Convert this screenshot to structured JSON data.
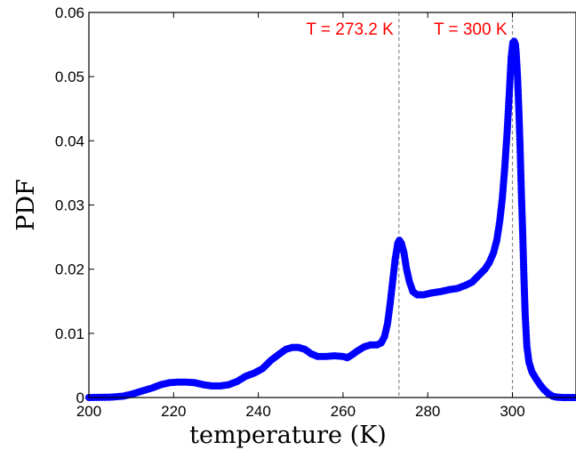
{
  "chart_data": {
    "type": "scatter",
    "xlabel": "temperature (K)",
    "ylabel": "PDF",
    "xlim": [
      200,
      315
    ],
    "ylim": [
      0,
      0.06
    ],
    "xticks": [
      200,
      220,
      240,
      260,
      280,
      300
    ],
    "yticks": [
      0,
      0.01,
      0.02,
      0.03,
      0.04,
      0.05,
      0.06
    ],
    "ytick_labels": [
      "0",
      "0.01",
      "0.02",
      "0.03",
      "0.04",
      "0.05",
      "0.06"
    ],
    "grid": false,
    "marker_color": "#0000ff",
    "annotation_color": "#ff0000",
    "vlines": [
      {
        "x": 273.2,
        "label": "T = 273.2 K"
      },
      {
        "x": 300,
        "label": "T = 300 K"
      }
    ],
    "curve": [
      [
        200,
        0
      ],
      [
        205,
        5e-05
      ],
      [
        208,
        0.0002
      ],
      [
        210,
        0.0005
      ],
      [
        212,
        0.0009
      ],
      [
        215,
        0.0015
      ],
      [
        217,
        0.002
      ],
      [
        219,
        0.0023
      ],
      [
        221,
        0.0024
      ],
      [
        223,
        0.0024
      ],
      [
        225,
        0.0023
      ],
      [
        227,
        0.002
      ],
      [
        229,
        0.0018
      ],
      [
        231,
        0.0018
      ],
      [
        233,
        0.002
      ],
      [
        235,
        0.0025
      ],
      [
        237,
        0.0033
      ],
      [
        239,
        0.0038
      ],
      [
        241,
        0.0045
      ],
      [
        243,
        0.0058
      ],
      [
        245,
        0.0068
      ],
      [
        246.5,
        0.0075
      ],
      [
        248,
        0.0078
      ],
      [
        249.5,
        0.0078
      ],
      [
        251,
        0.0075
      ],
      [
        252.5,
        0.0068
      ],
      [
        254,
        0.0064
      ],
      [
        256,
        0.0064
      ],
      [
        258,
        0.0065
      ],
      [
        260,
        0.0064
      ],
      [
        261,
        0.0062
      ],
      [
        262,
        0.0066
      ],
      [
        263.5,
        0.0073
      ],
      [
        265,
        0.0079
      ],
      [
        266.5,
        0.0082
      ],
      [
        268,
        0.0082
      ],
      [
        269,
        0.0085
      ],
      [
        269.8,
        0.0095
      ],
      [
        270.5,
        0.0115
      ],
      [
        271.1,
        0.0145
      ],
      [
        271.7,
        0.018
      ],
      [
        272.3,
        0.0215
      ],
      [
        272.9,
        0.024
      ],
      [
        273.3,
        0.0245
      ],
      [
        273.8,
        0.024
      ],
      [
        274.4,
        0.0225
      ],
      [
        275.0,
        0.02
      ],
      [
        275.7,
        0.018
      ],
      [
        276.5,
        0.0165
      ],
      [
        277.5,
        0.016
      ],
      [
        279,
        0.016
      ],
      [
        281,
        0.0163
      ],
      [
        283,
        0.0165
      ],
      [
        285,
        0.0168
      ],
      [
        287,
        0.017
      ],
      [
        289,
        0.0175
      ],
      [
        290.5,
        0.018
      ],
      [
        292,
        0.019
      ],
      [
        293.5,
        0.02
      ],
      [
        294.5,
        0.021
      ],
      [
        295.5,
        0.0225
      ],
      [
        296.3,
        0.0245
      ],
      [
        297.0,
        0.0275
      ],
      [
        297.6,
        0.031
      ],
      [
        298.2,
        0.036
      ],
      [
        298.8,
        0.042
      ],
      [
        299.3,
        0.048
      ],
      [
        299.7,
        0.053
      ],
      [
        300.1,
        0.0553
      ],
      [
        300.4,
        0.0555
      ],
      [
        300.7,
        0.055
      ],
      [
        300.9,
        0.0535
      ],
      [
        301.2,
        0.05
      ],
      [
        301.5,
        0.045
      ],
      [
        301.8,
        0.039
      ],
      [
        302.1,
        0.032
      ],
      [
        302.4,
        0.026
      ],
      [
        302.7,
        0.019
      ],
      [
        303.0,
        0.013
      ],
      [
        303.4,
        0.008
      ],
      [
        303.9,
        0.0055
      ],
      [
        304.6,
        0.004
      ],
      [
        305.5,
        0.003
      ],
      [
        306.5,
        0.002
      ],
      [
        307.5,
        0.0012
      ],
      [
        308.5,
        0.0006
      ],
      [
        309.5,
        0.0002
      ],
      [
        310.5,
        5e-05
      ],
      [
        312,
        0
      ],
      [
        315,
        0
      ]
    ]
  }
}
